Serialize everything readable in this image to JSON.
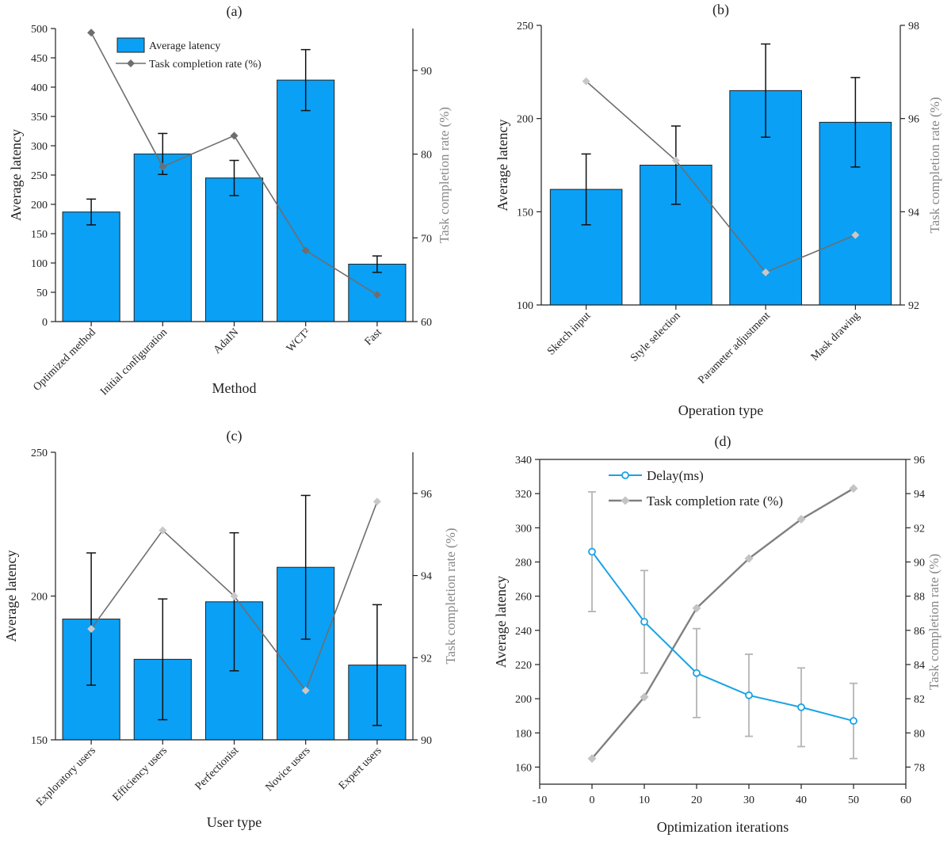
{
  "chart_data": [
    {
      "panel": "(a)",
      "type": "bar",
      "xlabel": "Method",
      "ylabel": "Average latency",
      "y2label": "Task completion rate (%)",
      "ylim": [
        0,
        500
      ],
      "y2lim": [
        60,
        95
      ],
      "yticks": [
        0,
        50,
        100,
        150,
        200,
        250,
        300,
        350,
        400,
        450,
        500
      ],
      "y2ticks": [
        60,
        70,
        80,
        90
      ],
      "categories": [
        "Optimized method",
        "Initial configuration",
        "AdaIN",
        "WCT²",
        "Fast"
      ],
      "bar_series": {
        "name": "Average latency",
        "values": [
          187,
          286,
          245,
          412,
          98
        ],
        "errors": [
          22,
          35,
          30,
          52,
          14
        ]
      },
      "line_series": {
        "name": "Task completion rate (%)",
        "values": [
          94.5,
          78.5,
          82.2,
          68.5,
          63.2
        ]
      },
      "legend": [
        "Average latency",
        "Task completion rate (%)"
      ],
      "legend_position": "top-left"
    },
    {
      "panel": "(b)",
      "type": "bar",
      "xlabel": "Operation type",
      "ylabel": "Average latency",
      "y2label": "Task completion rate (%)",
      "ylim": [
        100,
        250
      ],
      "y2lim": [
        92,
        98
      ],
      "yticks": [
        100,
        150,
        200,
        250
      ],
      "y2ticks": [
        92,
        94,
        96,
        98
      ],
      "categories": [
        "Sketch input",
        "Style selection",
        "Parameter adjustment",
        "Mask drawing"
      ],
      "bar_series": {
        "name": "Average latency",
        "values": [
          162,
          175,
          215,
          198
        ],
        "errors": [
          19,
          21,
          25,
          24
        ]
      },
      "line_series": {
        "name": "Task completion rate (%)",
        "values": [
          96.8,
          95.1,
          92.7,
          93.5
        ]
      }
    },
    {
      "panel": "(c)",
      "type": "bar",
      "xlabel": "User type",
      "ylabel": "Average latency",
      "y2label": "Task completion rate (%)",
      "ylim": [
        150,
        250
      ],
      "y2lim": [
        90,
        97
      ],
      "yticks": [
        150,
        200,
        250
      ],
      "y2ticks": [
        90,
        92,
        94,
        96
      ],
      "categories": [
        "Exploratory users",
        "Efficiency users",
        "Perfectionist",
        "Novice users",
        "Expert users"
      ],
      "bar_series": {
        "name": "Average latency",
        "values": [
          192,
          178,
          198,
          210,
          176
        ],
        "errors": [
          23,
          21,
          24,
          25,
          21
        ]
      },
      "line_series": {
        "name": "Task completion rate (%)",
        "values": [
          92.7,
          95.1,
          93.5,
          91.2,
          95.8
        ]
      }
    },
    {
      "panel": "(d)",
      "type": "line",
      "xlabel": "Optimization iterations",
      "ylabel": "Average latency",
      "y2label": "Task completion rate (%)",
      "xlim": [
        -10,
        60
      ],
      "ylim": [
        150,
        340
      ],
      "y2lim": [
        77,
        96
      ],
      "xticks": [
        -10,
        0,
        10,
        20,
        30,
        40,
        50,
        60
      ],
      "yticks": [
        160,
        180,
        200,
        220,
        240,
        260,
        280,
        300,
        320,
        340
      ],
      "y2ticks": [
        78,
        80,
        82,
        84,
        86,
        88,
        90,
        92,
        94,
        96
      ],
      "x": [
        0,
        10,
        20,
        30,
        40,
        50
      ],
      "series": [
        {
          "name": "Delay(ms)",
          "axis": "left",
          "values": [
            286,
            245,
            215,
            202,
            195,
            187
          ],
          "errors": [
            35,
            30,
            26,
            24,
            23,
            22
          ]
        },
        {
          "name": "Task completion rate (%)",
          "axis": "right",
          "values": [
            78.5,
            82.1,
            87.3,
            90.2,
            92.5,
            94.3
          ]
        }
      ],
      "legend": [
        "Delay(ms)",
        "Task completion rate (%)"
      ],
      "legend_position": "top-left"
    }
  ]
}
